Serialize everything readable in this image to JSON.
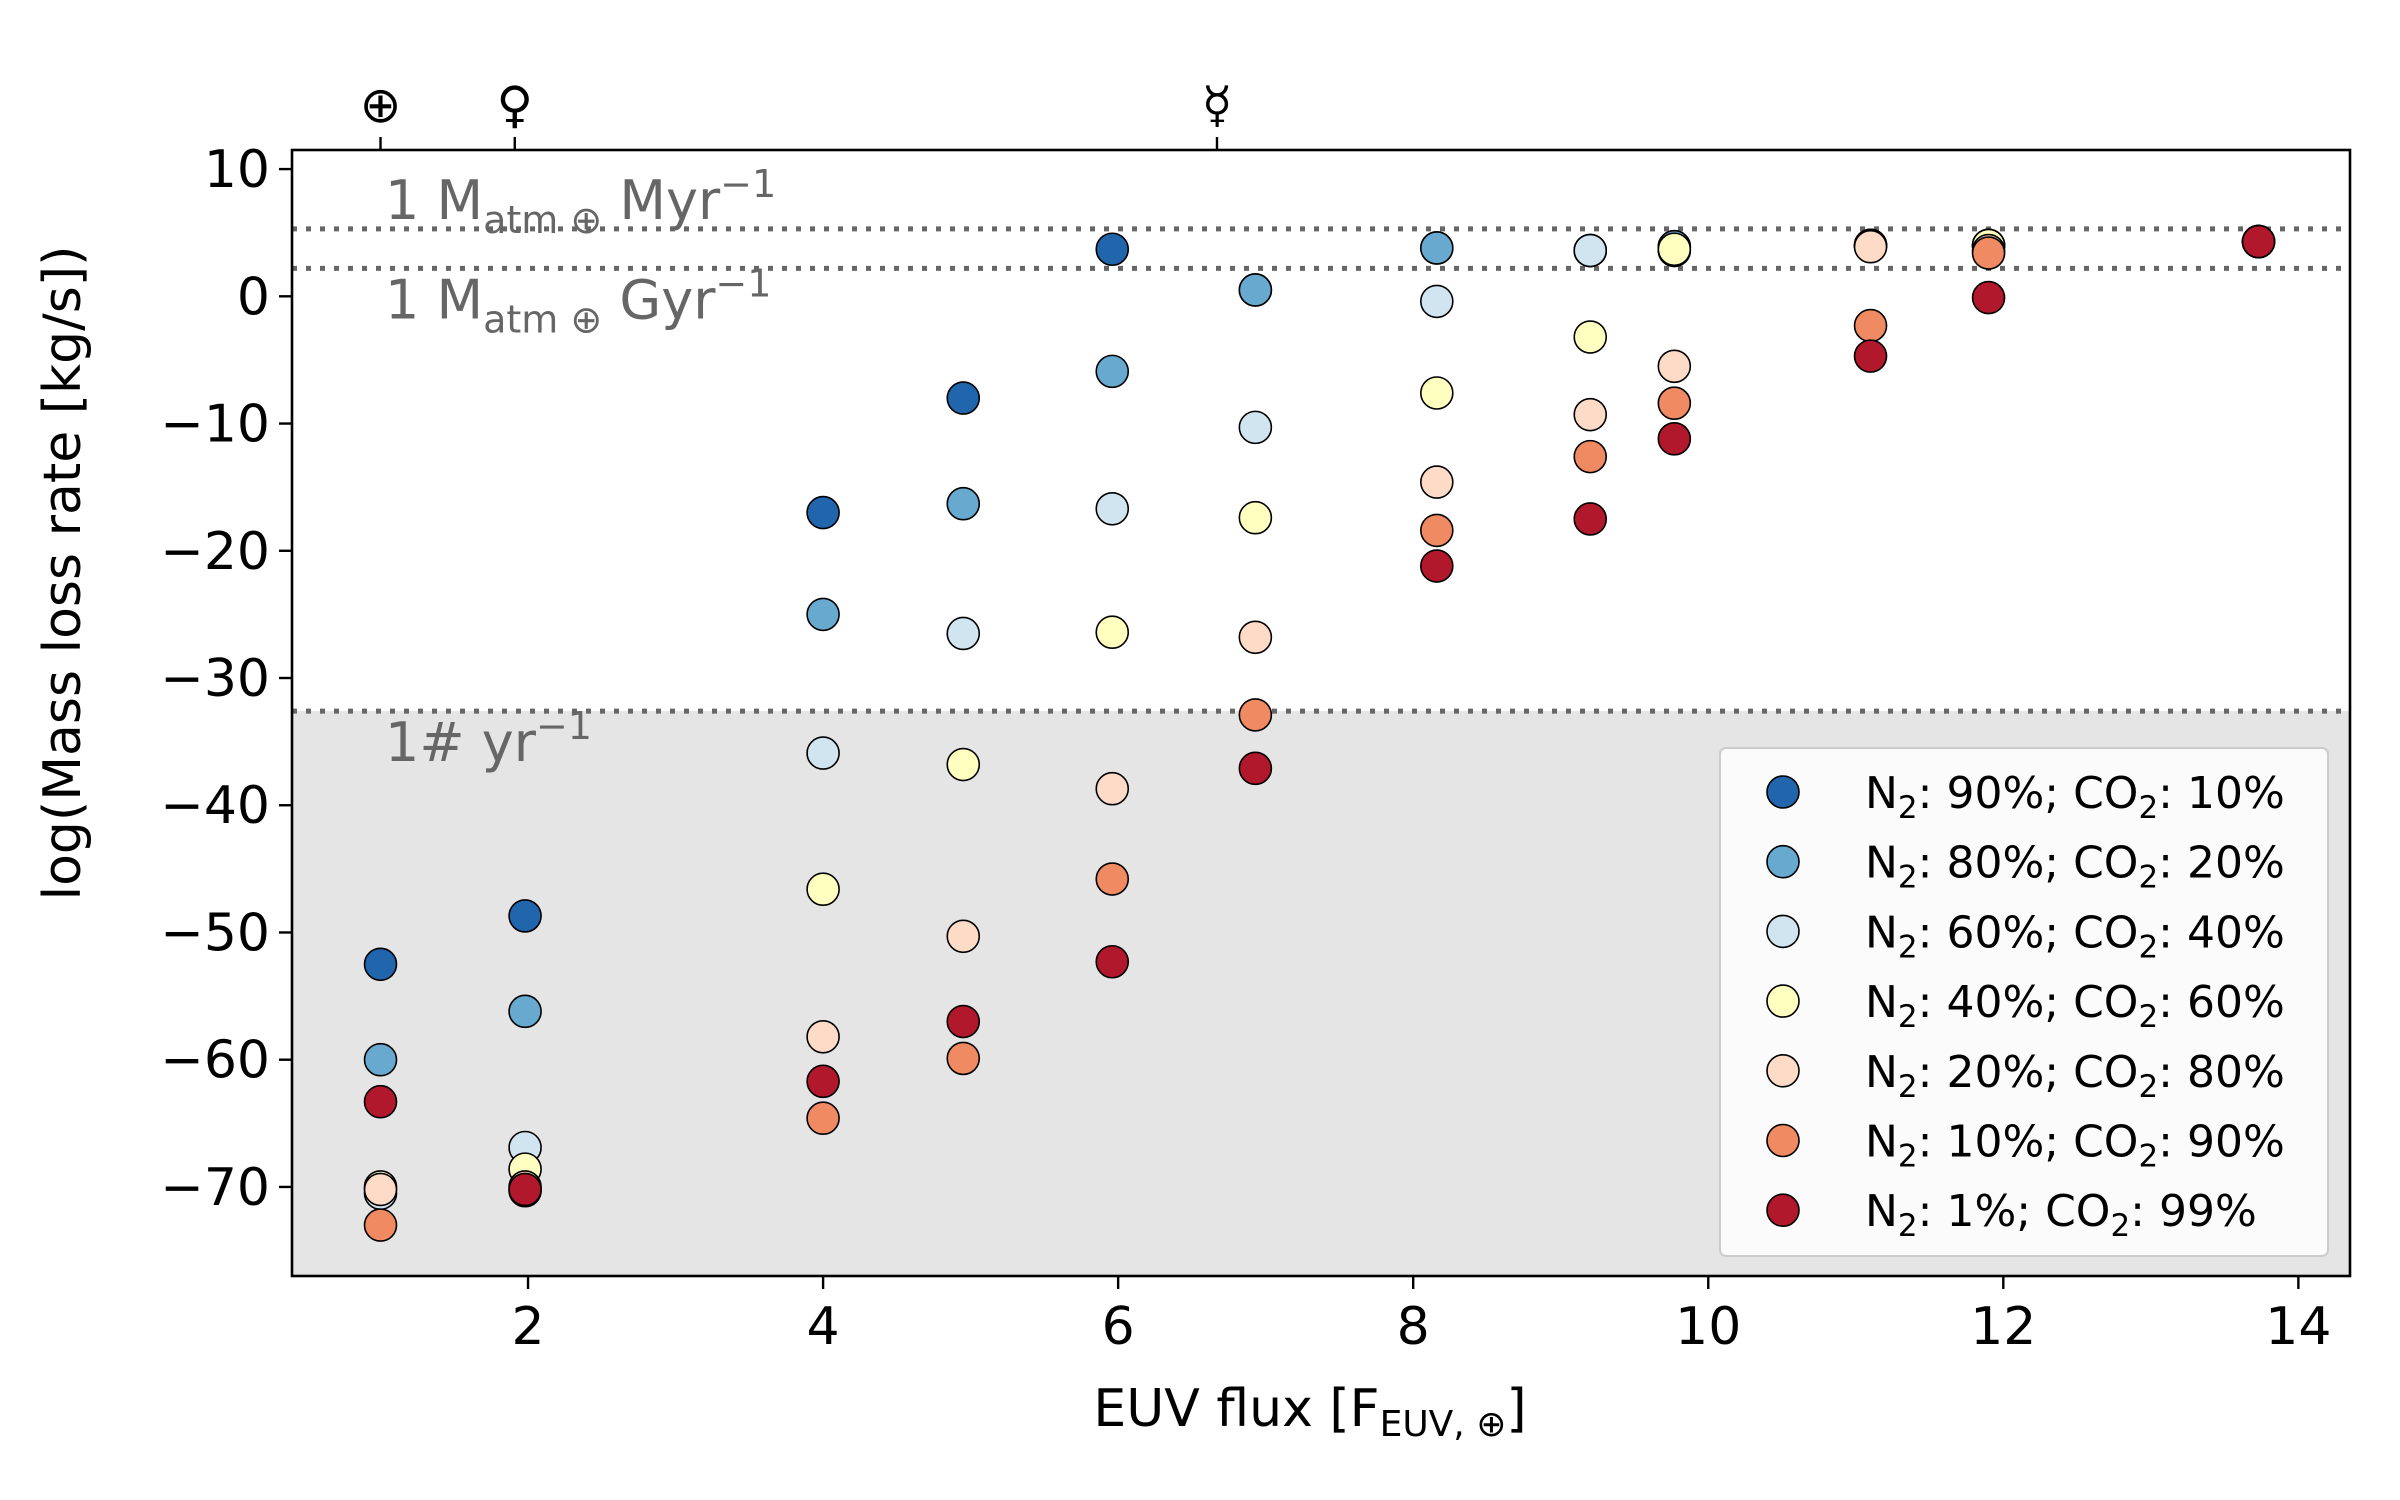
{
  "chart_data": {
    "type": "scatter",
    "xlabel": "EUV flux [F",
    "xlabel_sub": "EUV, ⊕",
    "xlabel_end": "]",
    "ylabel": "log(Mass loss rate [kg/s])",
    "xlim": [
      0.4,
      14.35
    ],
    "ylim": [
      -77,
      11.5
    ],
    "xticks": [
      2,
      4,
      6,
      8,
      10,
      12,
      14
    ],
    "xtick_labels": [
      "2",
      "4",
      "6",
      "8",
      "10",
      "12",
      "14"
    ],
    "yticks": [
      10,
      0,
      -10,
      -20,
      -30,
      -40,
      -50,
      -60,
      -70
    ],
    "ytick_labels": [
      "10",
      "0",
      "−10",
      "−20",
      "−30",
      "−40",
      "−50",
      "−60",
      "−70"
    ],
    "shaded_region": {
      "below": -32.6,
      "color": "#e5e5e5"
    },
    "reference_lines": [
      {
        "y": 5.3,
        "label_main": "1 M",
        "label_sub": "atm ⊕",
        "label_unit": " Myr",
        "label_sup": "−1"
      },
      {
        "y": 2.2,
        "label_main": "1 M",
        "label_sub": "atm ⊕",
        "label_unit": " Gyr",
        "label_sup": "−1"
      },
      {
        "y": -32.6,
        "label_main": "1# yr",
        "label_sub": "",
        "label_unit": "",
        "label_sup": "−1"
      }
    ],
    "planet_markers": [
      {
        "name": "Earth",
        "symbol": "⊕",
        "x": 1.0
      },
      {
        "name": "Venus",
        "symbol": "♀",
        "x": 1.91
      },
      {
        "name": "Mercury",
        "symbol": "☿",
        "x": 6.67
      }
    ],
    "legend_position": "lower-right",
    "series": [
      {
        "name": "N2: 90%; CO2: 10%",
        "n2": "90%",
        "co2": "10%",
        "color": "#2166ac",
        "x": [
          1.0,
          1.98,
          4.0,
          4.95,
          5.96,
          6.93,
          8.16,
          9.2,
          9.77,
          11.1,
          11.9,
          13.73
        ],
        "y": [
          -52.5,
          -48.7,
          -17.0,
          -8.0,
          3.7,
          0.5,
          3.8,
          3.6,
          3.9,
          4.0,
          4.0,
          4.3
        ]
      },
      {
        "name": "N2: 80%; CO2: 20%",
        "n2": "80%",
        "co2": "20%",
        "color": "#67a9cf",
        "x": [
          1.0,
          1.98,
          4.0,
          4.95,
          5.96,
          6.93,
          8.16,
          9.2,
          9.77,
          11.1,
          11.9,
          13.73
        ],
        "y": [
          -60.0,
          -56.2,
          -25.0,
          -16.3,
          -5.9,
          0.5,
          3.8,
          3.6,
          3.9,
          4.0,
          4.0,
          4.3
        ]
      },
      {
        "name": "N2: 60%; CO2: 40%",
        "n2": "60%",
        "co2": "40%",
        "color": "#d1e5f0",
        "x": [
          1.0,
          1.98,
          4.0,
          4.95,
          5.96,
          6.93,
          8.16,
          9.2,
          9.77,
          11.1,
          11.9,
          13.73
        ],
        "y": [
          -70.5,
          -66.9,
          -35.9,
          -26.5,
          -16.7,
          -10.3,
          -0.4,
          3.6,
          3.6,
          4.0,
          4.0,
          4.3
        ]
      },
      {
        "name": "N2: 40%; CO2: 60%",
        "n2": "40%",
        "co2": "60%",
        "color": "#ffffbf",
        "x": [
          1.0,
          1.98,
          4.0,
          4.95,
          5.96,
          6.93,
          8.16,
          9.2,
          9.77,
          11.1,
          11.9,
          13.73
        ],
        "y": [
          -70.0,
          -68.6,
          -46.6,
          -36.8,
          -26.4,
          -17.4,
          -7.6,
          -3.2,
          3.7,
          4.0,
          4.0,
          4.3
        ]
      },
      {
        "name": "N2: 20%; CO2: 80%",
        "n2": "20%",
        "co2": "80%",
        "color": "#fddbc7",
        "x": [
          1.0,
          1.98,
          4.0,
          4.95,
          5.96,
          6.93,
          8.16,
          9.2,
          9.77,
          11.1,
          11.9,
          13.73
        ],
        "y": [
          -70.2,
          -70.0,
          -58.2,
          -50.3,
          -38.7,
          -26.8,
          -14.6,
          -9.3,
          -5.5,
          3.9,
          3.6,
          4.3
        ]
      },
      {
        "name": "N2: 10%; CO2: 90%",
        "n2": "10%",
        "co2": "90%",
        "color": "#ef8a62",
        "x": [
          1.0,
          1.98,
          4.0,
          4.95,
          5.96,
          6.93,
          8.16,
          9.2,
          9.77,
          11.1,
          11.9,
          13.73
        ],
        "y": [
          -73.0,
          -70.3,
          -64.6,
          -59.9,
          -45.8,
          -32.9,
          -18.4,
          -12.6,
          -8.4,
          -2.3,
          3.4,
          4.3
        ]
      },
      {
        "name": "N2: 1%; CO2: 99%",
        "n2": " 1%",
        "co2": "99%",
        "color": "#b2182b",
        "x": [
          1.0,
          1.98,
          4.0,
          4.95,
          5.96,
          6.93,
          8.16,
          9.2,
          9.77,
          11.1,
          11.9,
          13.73
        ],
        "y": [
          -63.3,
          -70.2,
          -61.7,
          -57.0,
          -52.3,
          -37.1,
          -21.2,
          -17.5,
          -11.2,
          -4.7,
          -0.1,
          4.3
        ]
      }
    ],
    "legend_labels": {
      "prefix": "N",
      "sub2": "2",
      "sep": ": ",
      "mid": "; CO",
      "end": ": "
    }
  }
}
